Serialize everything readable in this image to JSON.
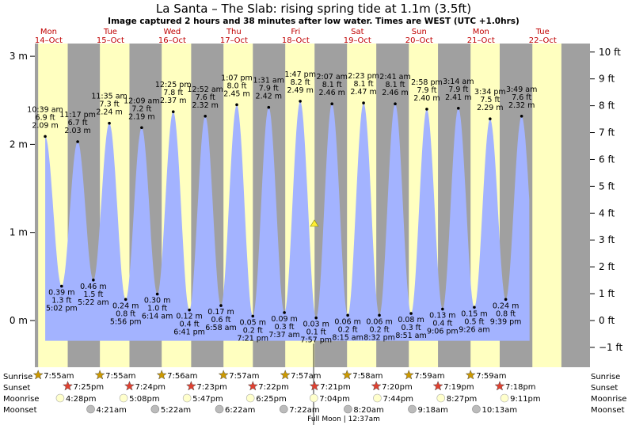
{
  "title": "La Santa – The Slab: rising  spring tide at 1.1m (3.5ft)",
  "subtitle": "Image captured 2 hours and 38 minutes after low water. Times are WEST (UTC +1.0hrs)",
  "days": [
    {
      "name": "Mon",
      "date": "14–Oct"
    },
    {
      "name": "Tue",
      "date": "15–Oct"
    },
    {
      "name": "Wed",
      "date": "16–Oct"
    },
    {
      "name": "Thu",
      "date": "17–Oct"
    },
    {
      "name": "Fri",
      "date": "18–Oct"
    },
    {
      "name": "Sat",
      "date": "19–Oct"
    },
    {
      "name": "Sun",
      "date": "20–Oct"
    },
    {
      "name": "Mon",
      "date": "21–Oct"
    },
    {
      "name": "Tue",
      "date": "22–Oct"
    }
  ],
  "left_axis": [
    "3 m",
    "2 m",
    "1 m",
    "0 m"
  ],
  "right_axis": [
    "10 ft",
    "9 ft",
    "8 ft",
    "7 ft",
    "6 ft",
    "5 ft",
    "4 ft",
    "3 ft",
    "2 ft",
    "1 ft",
    "0 ft",
    "−1 ft"
  ],
  "row_labels": {
    "sunrise": "Sunrise",
    "sunset": "Sunset",
    "moonrise": "Moonrise",
    "moonset": "Moonset"
  },
  "sunrise": [
    "7:55am",
    "7:55am",
    "7:56am",
    "7:57am",
    "7:57am",
    "7:58am",
    "7:59am",
    "7:59am"
  ],
  "sunset": [
    "7:25pm",
    "7:24pm",
    "7:23pm",
    "7:22pm",
    "7:21pm",
    "7:20pm",
    "7:19pm",
    "7:18pm"
  ],
  "moonrise": [
    "4:28pm",
    "5:08pm",
    "5:47pm",
    "6:25pm",
    "7:04pm",
    "7:44pm",
    "8:27pm",
    "9:11pm"
  ],
  "moonset": [
    "4:21am",
    "5:22am",
    "6:22am",
    "7:22am",
    "8:20am",
    "9:18am",
    "10:13am"
  ],
  "full_moon": "Full Moon | 12:37am",
  "colors": {
    "water": "#a3b3ff",
    "day": "#ffffc0",
    "night": "#a0a0a0",
    "day_label": "#c00000",
    "sun_star": "#cc9900",
    "sunset_star": "#e04030"
  },
  "chart_data": {
    "type": "area",
    "title": "La Santa – The Slab: rising  spring tide at 1.1m (3.5ft)",
    "ylabel_left": "m",
    "ylabel_right": "ft",
    "ylim_m": [
      -0.45,
      3.1
    ],
    "current_level_m": 1.1,
    "extremes": [
      {
        "time": "10:39 am",
        "ft": "6.9 ft",
        "m": 2.09,
        "type": "high"
      },
      {
        "time": "5:02 pm",
        "ft": "1.3 ft",
        "m": 0.39,
        "type": "low"
      },
      {
        "time": "11:17 pm",
        "ft": "6.7 ft",
        "m": 2.03,
        "type": "high"
      },
      {
        "time": "5:22 am",
        "ft": "1.5 ft",
        "m": 0.46,
        "type": "low"
      },
      {
        "time": "11:35 am",
        "ft": "7.3 ft",
        "m": 2.24,
        "type": "high"
      },
      {
        "time": "5:56 pm",
        "ft": "0.8 ft",
        "m": 0.24,
        "type": "low"
      },
      {
        "time": "12:09 am",
        "ft": "7.2 ft",
        "m": 2.19,
        "type": "high"
      },
      {
        "time": "6:14 am",
        "ft": "1.0 ft",
        "m": 0.3,
        "type": "low"
      },
      {
        "time": "12:25 pm",
        "ft": "7.8 ft",
        "m": 2.37,
        "type": "high"
      },
      {
        "time": "6:41 pm",
        "ft": "0.4 ft",
        "m": 0.12,
        "type": "low"
      },
      {
        "time": "12:52 am",
        "ft": "7.6 ft",
        "m": 2.32,
        "type": "high"
      },
      {
        "time": "6:58 am",
        "ft": "0.6 ft",
        "m": 0.17,
        "type": "low"
      },
      {
        "time": "1:07 pm",
        "ft": "8.0 ft",
        "m": 2.45,
        "type": "high"
      },
      {
        "time": "7:21 pm",
        "ft": "0.2 ft",
        "m": 0.05,
        "type": "low"
      },
      {
        "time": "1:31 am",
        "ft": "7.9 ft",
        "m": 2.42,
        "type": "high"
      },
      {
        "time": "7:37 am",
        "ft": "0.3 ft",
        "m": 0.09,
        "type": "low"
      },
      {
        "time": "1:47 pm",
        "ft": "8.2 ft",
        "m": 2.49,
        "type": "high"
      },
      {
        "time": "7:57 pm",
        "ft": "0.1 ft",
        "m": 0.03,
        "type": "low"
      },
      {
        "time": "2:07 am",
        "ft": "8.1 ft",
        "m": 2.46,
        "type": "high"
      },
      {
        "time": "8:15 am",
        "ft": "0.2 ft",
        "m": 0.06,
        "type": "low"
      },
      {
        "time": "2:23 pm",
        "ft": "8.1 ft",
        "m": 2.47,
        "type": "high"
      },
      {
        "time": "8:32 pm",
        "ft": "0.2 ft",
        "m": 0.06,
        "type": "low"
      },
      {
        "time": "2:41 am",
        "ft": "8.1 ft",
        "m": 2.46,
        "type": "high"
      },
      {
        "time": "8:51 am",
        "ft": "0.3 ft",
        "m": 0.08,
        "type": "low"
      },
      {
        "time": "2:58 pm",
        "ft": "7.9 ft",
        "m": 2.4,
        "type": "high"
      },
      {
        "time": "9:06 pm",
        "ft": "0.4 ft",
        "m": 0.13,
        "type": "low"
      },
      {
        "time": "3:14 am",
        "ft": "7.9 ft",
        "m": 2.41,
        "type": "high"
      },
      {
        "time": "9:26 am",
        "ft": "0.5 ft",
        "m": 0.15,
        "type": "low"
      },
      {
        "time": "3:34 pm",
        "ft": "7.5 ft",
        "m": 2.29,
        "type": "high"
      },
      {
        "time": "9:39 pm",
        "ft": "0.8 ft",
        "m": 0.24,
        "type": "low"
      },
      {
        "time": "3:49 am",
        "ft": "7.6 ft",
        "m": 2.32,
        "type": "high"
      }
    ]
  }
}
